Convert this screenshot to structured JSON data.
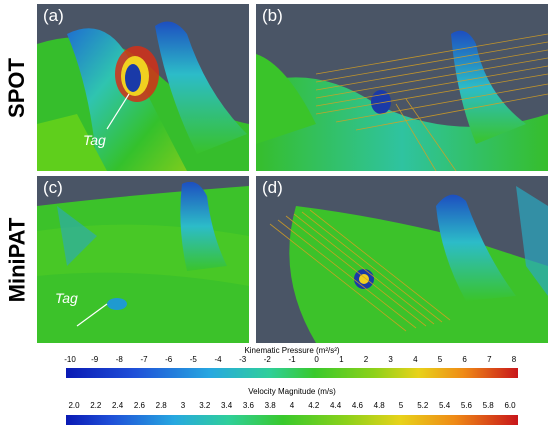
{
  "rows": [
    {
      "label": "SPOT"
    },
    {
      "label": "MiniPAT"
    }
  ],
  "panels": [
    {
      "letter": "(a)",
      "tag": "Tag"
    },
    {
      "letter": "(b)"
    },
    {
      "letter": "(c)",
      "tag": "Tag"
    },
    {
      "letter": "(d)"
    }
  ],
  "colorbars": {
    "pressure": {
      "title": "Kinematic Pressure (m²/s²)",
      "ticks": [
        "-10",
        "-9",
        "-8",
        "-7",
        "-6",
        "-5",
        "-4",
        "-3",
        "-2",
        "-1",
        "0",
        "1",
        "2",
        "3",
        "4",
        "5",
        "6",
        "7",
        "8"
      ]
    },
    "velocity": {
      "title": "Velocity Magnitude (m/s)",
      "ticks": [
        "2.0",
        "2.2",
        "2.4",
        "2.6",
        "2.8",
        "3",
        "3.2",
        "3.4",
        "3.6",
        "3.8",
        "4",
        "4.2",
        "4.4",
        "4.6",
        "4.8",
        "5",
        "5.2",
        "5.4",
        "5.6",
        "5.8",
        "6.0"
      ]
    }
  },
  "colors": {
    "background_panel": "#4a5566",
    "body_green": "#2fbf2a",
    "body_blue": "#1d5fc4",
    "high_red": "#d21e16"
  }
}
